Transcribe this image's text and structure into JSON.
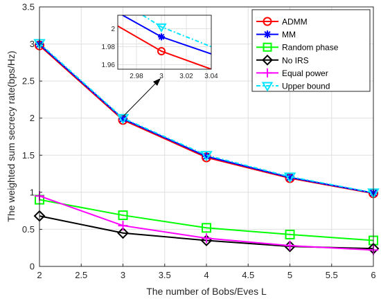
{
  "chart_data": {
    "type": "line",
    "xlabel": "The number of Bobs/Eves L",
    "ylabel": "The weighted sum secrecy rate(bps/Hz)",
    "xlim": [
      2,
      6
    ],
    "ylim": [
      0,
      3.5
    ],
    "xticks": [
      "2",
      "2.5",
      "3",
      "3.5",
      "4",
      "4.5",
      "5",
      "5.5",
      "6"
    ],
    "yticks": [
      "0",
      "0.5",
      "1",
      "1.5",
      "2",
      "2.5",
      "3",
      "3.5"
    ],
    "grid": true,
    "legend_position": "top-right",
    "x": [
      2,
      3,
      4,
      5,
      6
    ],
    "series": [
      {
        "name": "ADMM",
        "values": [
          2.98,
          1.975,
          1.47,
          1.19,
          0.985
        ],
        "color": "#ff0000",
        "marker": "circle",
        "dash": "solid"
      },
      {
        "name": "MM",
        "values": [
          2.995,
          1.99,
          1.485,
          1.2,
          0.99
        ],
        "color": "#0000ff",
        "marker": "asterisk",
        "dash": "solid"
      },
      {
        "name": "Random phase",
        "values": [
          0.9,
          0.69,
          0.52,
          0.43,
          0.35
        ],
        "color": "#00ff00",
        "marker": "square",
        "dash": "solid"
      },
      {
        "name": "No IRS",
        "values": [
          0.68,
          0.45,
          0.35,
          0.27,
          0.24
        ],
        "color": "#000000",
        "marker": "diamond",
        "dash": "solid"
      },
      {
        "name": "Equal power",
        "values": [
          0.95,
          0.55,
          0.38,
          0.28,
          0.22
        ],
        "color": "#ff00ff",
        "marker": "plus",
        "dash": "solid"
      },
      {
        "name": "Upper bound",
        "values": [
          3.01,
          2.0,
          1.5,
          1.21,
          0.995
        ],
        "color": "#00e5ff",
        "marker": "triangle-down",
        "dash": "dashdot"
      }
    ],
    "inset": {
      "xlim": [
        2.965,
        3.04
      ],
      "ylim": [
        1.955,
        2.015
      ],
      "xticks": [
        "2.98",
        "3",
        "3.02",
        "3.04"
      ],
      "yticks": [
        "1.96",
        "1.98",
        "2"
      ],
      "lines": [
        {
          "series": "ADMM",
          "points": [
            [
              2.965,
              2.003
            ],
            [
              3,
              1.975
            ],
            [
              3.04,
              1.955
            ]
          ],
          "markers": [
            [
              3,
              1.975
            ]
          ]
        },
        {
          "series": "MM",
          "points": [
            [
              2.965,
              2.018
            ],
            [
              3,
              1.991
            ],
            [
              3.04,
              1.972
            ]
          ],
          "markers": [
            [
              3,
              1.991
            ]
          ]
        },
        {
          "series": "Upper bound",
          "points": [
            [
              2.985,
              2.015
            ],
            [
              3,
              2.002
            ],
            [
              3.04,
              1.98
            ]
          ],
          "markers": [
            [
              3,
              2.002
            ]
          ]
        }
      ]
    }
  }
}
